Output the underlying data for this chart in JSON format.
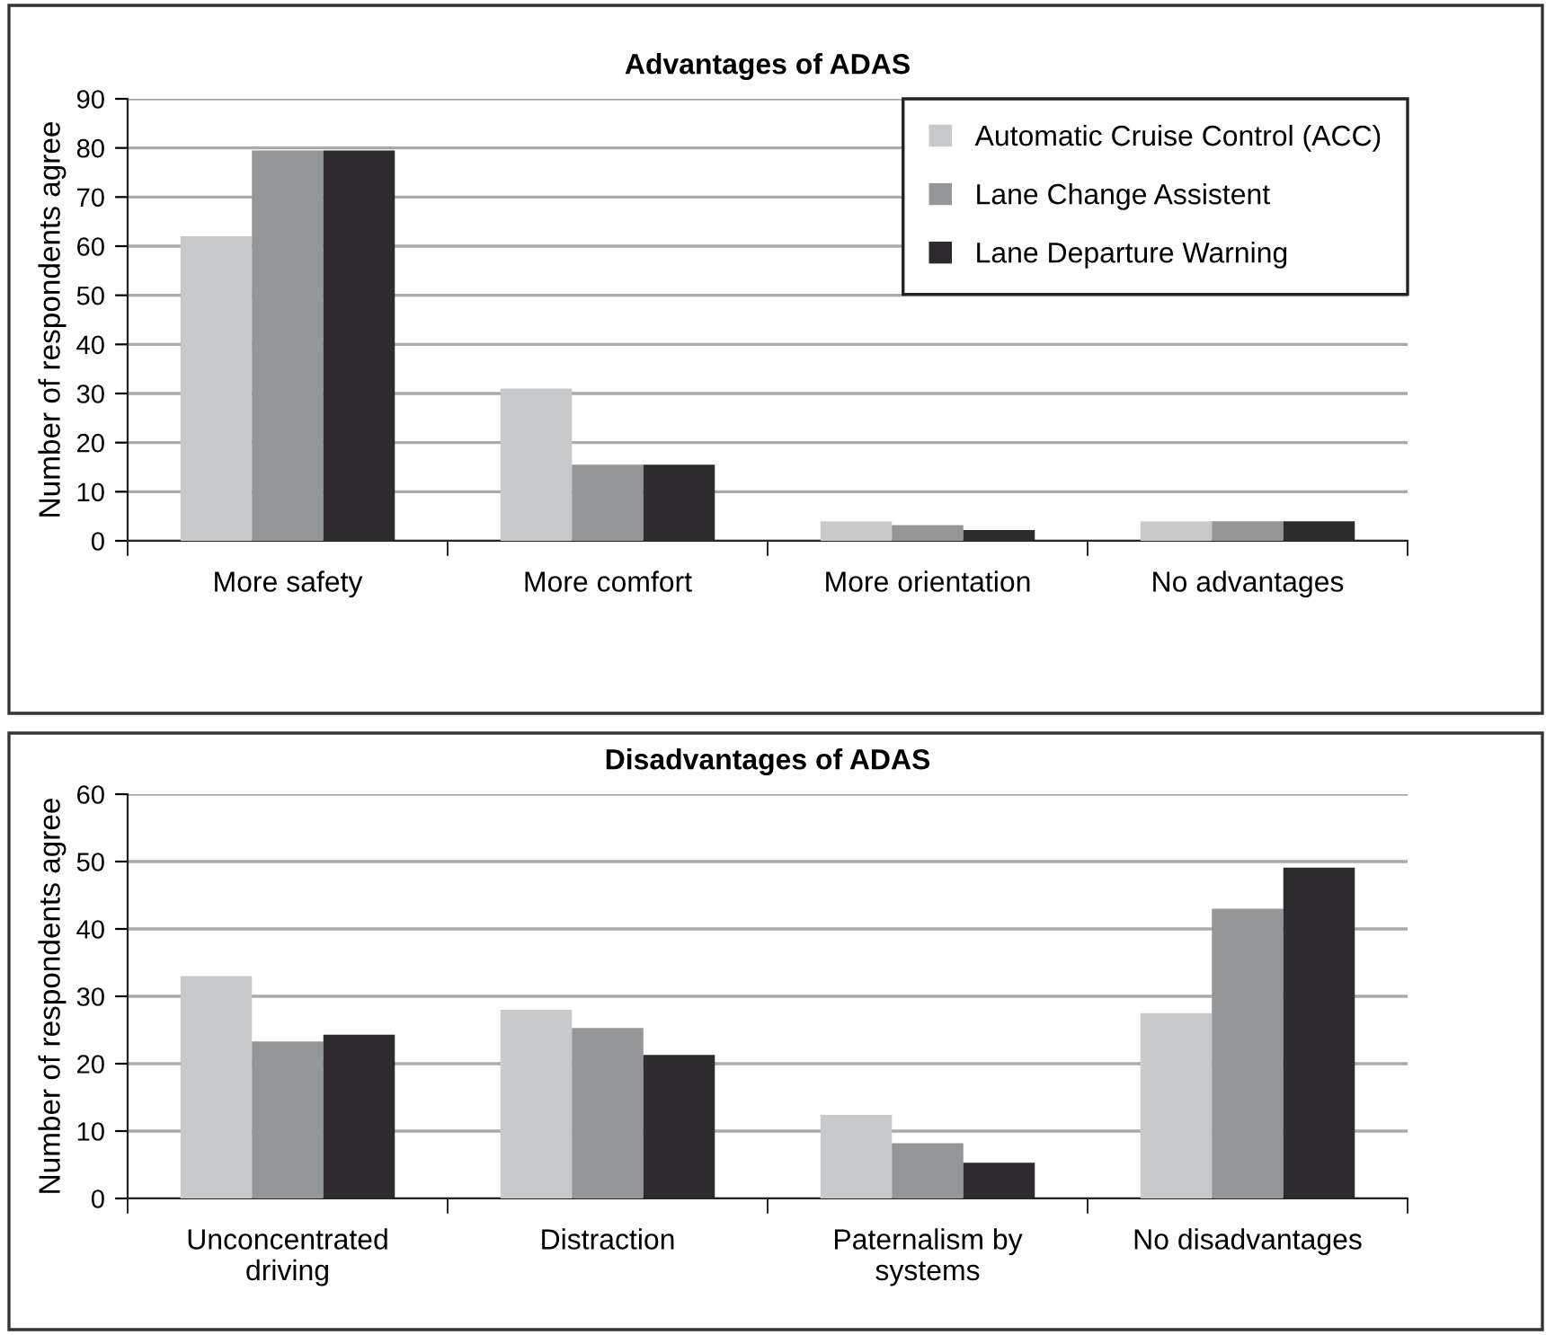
{
  "chart_data": [
    {
      "type": "bar",
      "title": "Advantages of ADAS",
      "ylabel": "Number of respondents agree",
      "categories": [
        "More safety",
        "More comfort",
        "More orientation",
        "No advantages"
      ],
      "series": [
        {
          "name": "Automatic Cruise Control (ACC)",
          "color": "#c8c9cb",
          "values": [
            62,
            31,
            4,
            4
          ]
        },
        {
          "name": "Lane Change Assistent",
          "color": "#959698",
          "values": [
            79.5,
            15.5,
            3.2,
            4
          ]
        },
        {
          "name": "Lane Departure Warning",
          "color": "#2d2b2d",
          "values": [
            79.5,
            15.5,
            2.2,
            4
          ]
        }
      ],
      "ylim": [
        0,
        90
      ],
      "yticks": [
        0,
        10,
        20,
        30,
        40,
        50,
        60,
        70,
        80,
        90
      ],
      "grid": "y",
      "legend": "top right"
    },
    {
      "type": "bar",
      "title": "Disadvantages of ADAS",
      "ylabel": "Number of respondents agree",
      "categories": [
        "Unconcentrated\ndriving",
        "Distraction",
        "Paternalism by\nsystems",
        "No disadvantages"
      ],
      "series": [
        {
          "color": "#c8c9cb",
          "values": [
            33,
            28,
            12.4,
            27.5
          ]
        },
        {
          "color": "#959698",
          "values": [
            23.3,
            25.3,
            8.2,
            43
          ]
        },
        {
          "color": "#2d2b2d",
          "values": [
            24.3,
            21.3,
            5.3,
            49.1
          ]
        }
      ],
      "ylim": [
        0,
        60
      ],
      "yticks": [
        0,
        10,
        20,
        30,
        40,
        50,
        60
      ],
      "grid": "y",
      "legend": false
    }
  ]
}
